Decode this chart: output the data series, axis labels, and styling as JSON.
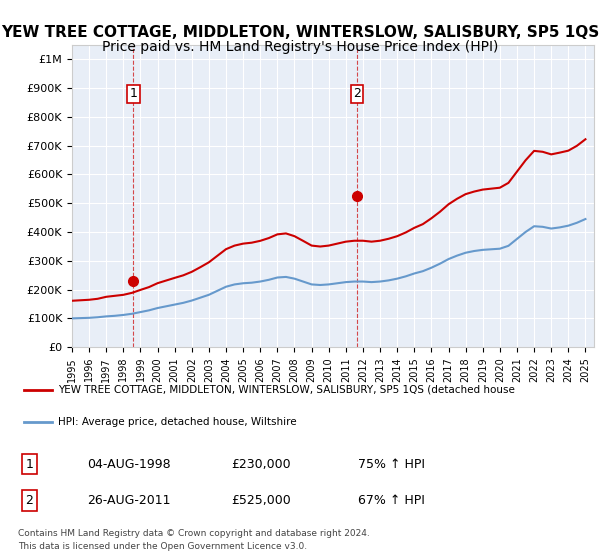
{
  "title": "YEW TREE COTTAGE, MIDDLETON, WINTERSLOW, SALISBURY, SP5 1QS",
  "subtitle": "Price paid vs. HM Land Registry's House Price Index (HPI)",
  "title_fontsize": 11,
  "subtitle_fontsize": 10,
  "bg_color": "#e8eef7",
  "plot_bg_color": "#e8eef7",
  "grid_color": "#ffffff",
  "red_color": "#cc0000",
  "blue_color": "#6699cc",
  "sale1_year": 1998.58,
  "sale1_price": 230000,
  "sale1_label": "1",
  "sale1_date": "04-AUG-1998",
  "sale1_hpi_pct": "75%",
  "sale2_year": 2011.65,
  "sale2_price": 525000,
  "sale2_label": "2",
  "sale2_date": "26-AUG-2011",
  "sale2_hpi_pct": "67%",
  "legend_red": "YEW TREE COTTAGE, MIDDLETON, WINTERSLOW, SALISBURY, SP5 1QS (detached house",
  "legend_blue": "HPI: Average price, detached house, Wiltshire",
  "footer1": "Contains HM Land Registry data © Crown copyright and database right 2024.",
  "footer2": "This data is licensed under the Open Government Licence v3.0.",
  "ylim_max": 1050000,
  "hpi_years": [
    1995,
    1995.5,
    1996,
    1996.5,
    1997,
    1997.5,
    1998,
    1998.5,
    1999,
    1999.5,
    2000,
    2000.5,
    2001,
    2001.5,
    2002,
    2002.5,
    2003,
    2003.5,
    2004,
    2004.5,
    2005,
    2005.5,
    2006,
    2006.5,
    2007,
    2007.5,
    2008,
    2008.5,
    2009,
    2009.5,
    2010,
    2010.5,
    2011,
    2011.5,
    2012,
    2012.5,
    2013,
    2013.5,
    2014,
    2014.5,
    2015,
    2015.5,
    2016,
    2016.5,
    2017,
    2017.5,
    2018,
    2018.5,
    2019,
    2019.5,
    2020,
    2020.5,
    2021,
    2021.5,
    2022,
    2022.5,
    2023,
    2023.5,
    2024,
    2024.5,
    2025
  ],
  "hpi_values": [
    100000,
    101000,
    102000,
    104000,
    107000,
    109000,
    112000,
    116000,
    122000,
    128000,
    136000,
    142000,
    148000,
    154000,
    162000,
    172000,
    182000,
    196000,
    210000,
    218000,
    222000,
    224000,
    228000,
    234000,
    242000,
    244000,
    238000,
    228000,
    218000,
    216000,
    218000,
    222000,
    226000,
    228000,
    228000,
    226000,
    228000,
    232000,
    238000,
    246000,
    256000,
    264000,
    276000,
    290000,
    306000,
    318000,
    328000,
    334000,
    338000,
    340000,
    342000,
    352000,
    376000,
    400000,
    420000,
    418000,
    412000,
    416000,
    422000,
    432000,
    445000
  ],
  "red_years": [
    1995,
    1995.5,
    1996,
    1996.5,
    1997,
    1997.5,
    1998,
    1998.5,
    1999,
    1999.5,
    2000,
    2000.5,
    2001,
    2001.5,
    2002,
    2002.5,
    2003,
    2003.5,
    2004,
    2004.5,
    2005,
    2005.5,
    2006,
    2006.5,
    2007,
    2007.5,
    2008,
    2008.5,
    2009,
    2009.5,
    2010,
    2010.5,
    2011,
    2011.5,
    2012,
    2012.5,
    2013,
    2013.5,
    2014,
    2014.5,
    2015,
    2015.5,
    2016,
    2016.5,
    2017,
    2017.5,
    2018,
    2018.5,
    2019,
    2019.5,
    2020,
    2020.5,
    2021,
    2021.5,
    2022,
    2022.5,
    2023,
    2023.5,
    2024,
    2024.5,
    2025
  ],
  "red_values": [
    161250,
    162960,
    164670,
    168090,
    175000,
    178420,
    181840,
    188680,
    198930,
    208750,
    222265,
    231500,
    240735,
    249540,
    261810,
    277870,
    294880,
    317670,
    340460,
    352820,
    359640,
    362880,
    369360,
    378960,
    391860,
    395100,
    385470,
    369360,
    352820,
    349580,
    352820,
    359640,
    366460,
    369700,
    369700,
    366460,
    369700,
    376520,
    385470,
    398370,
    414430,
    427330,
    447650,
    470340,
    496270,
    515450,
    531510,
    540460,
    547280,
    550520,
    553760,
    570580,
    609750,
    648920,
    681720,
    678480,
    669530,
    675620,
    682440,
    699260,
    722000
  ],
  "xtick_years": [
    1995,
    1996,
    1997,
    1998,
    1999,
    2000,
    2001,
    2002,
    2003,
    2004,
    2005,
    2006,
    2007,
    2008,
    2009,
    2010,
    2011,
    2012,
    2013,
    2014,
    2015,
    2016,
    2017,
    2018,
    2019,
    2020,
    2021,
    2022,
    2023,
    2024,
    2025
  ]
}
